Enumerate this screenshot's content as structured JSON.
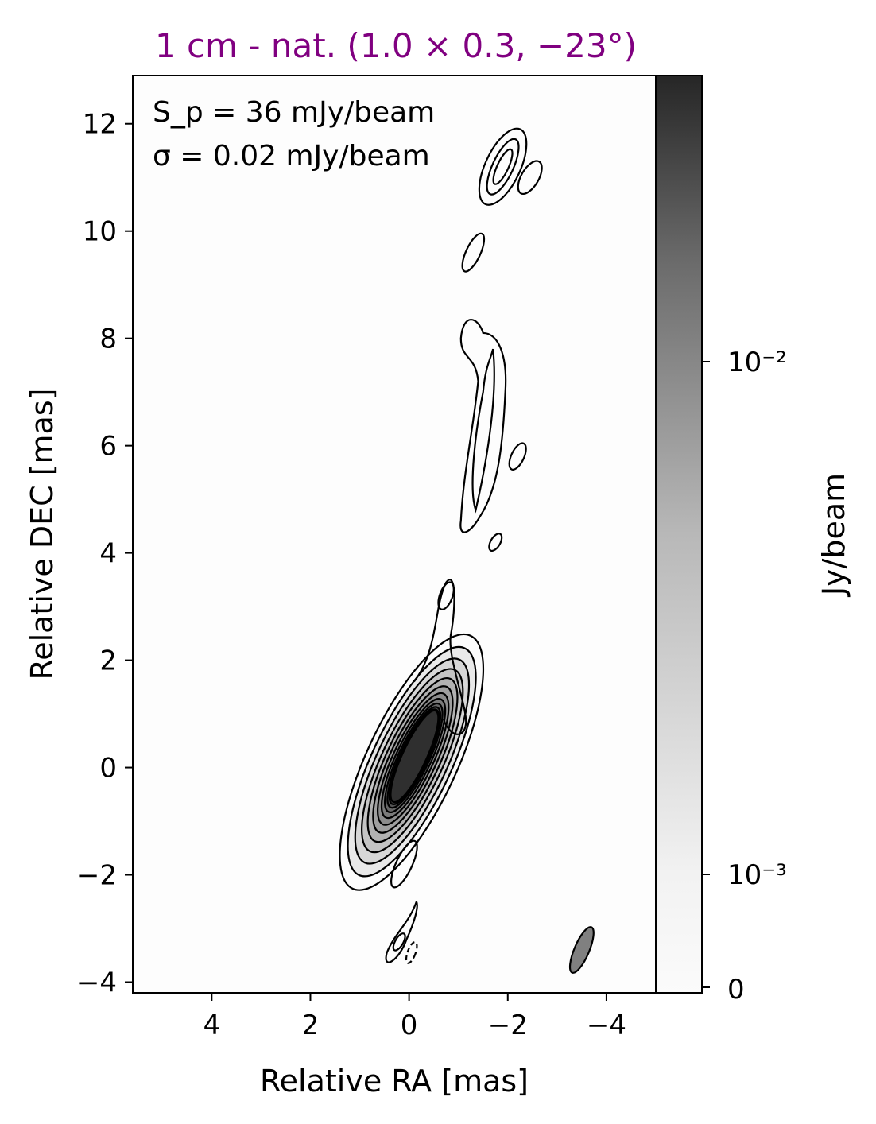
{
  "chart_data": {
    "type": "contour",
    "title": "1 cm - nat. (1.0 × 0.3, −23°)",
    "title_color": "#800080",
    "xlabel": "Relative RA [mas]",
    "ylabel": "Relative DEC [mas]",
    "xlim": [
      5.6,
      -5.0
    ],
    "ylim": [
      -4.2,
      12.9
    ],
    "xticks": [
      4,
      2,
      0,
      -2,
      -4
    ],
    "xtick_labels": [
      "4",
      "2",
      "0",
      "−2",
      "−4"
    ],
    "yticks": [
      -4,
      -2,
      0,
      2,
      4,
      6,
      8,
      10,
      12
    ],
    "ytick_labels": [
      "−4",
      "−2",
      "0",
      "2",
      "4",
      "6",
      "8",
      "10",
      "12"
    ],
    "annotation": {
      "line1": "S_p = 36 mJy/beam",
      "line2": "σ = 0.02 mJy/beam"
    },
    "peak_flux_mJy_per_beam": 36,
    "rms_mJy_per_beam": 0.02,
    "beam": {
      "major_mas": 1.0,
      "minor_mas": 0.3,
      "pa_deg": -23,
      "center": [
        -3.5,
        -3.4
      ]
    },
    "colorbar": {
      "label": "Jy/beam",
      "scale": "log",
      "tick_labels": [
        "0",
        "10⁻³",
        "10⁻²"
      ],
      "colormap": "greys"
    },
    "components": [
      {
        "name": "core",
        "x": -0.05,
        "y": 0.1,
        "levels": 12
      },
      {
        "name": "inner-jet",
        "x": -0.75,
        "y": 3.2,
        "levels": 2
      },
      {
        "name": "counter-jet",
        "x": 0.15,
        "y": -3.2,
        "levels": 2
      },
      {
        "name": "jet-knot",
        "x": -1.6,
        "y": 6.0,
        "levels": 3
      },
      {
        "name": "outer-knot",
        "x": -1.9,
        "y": 11.2,
        "levels": 4
      }
    ],
    "grid": false
  }
}
